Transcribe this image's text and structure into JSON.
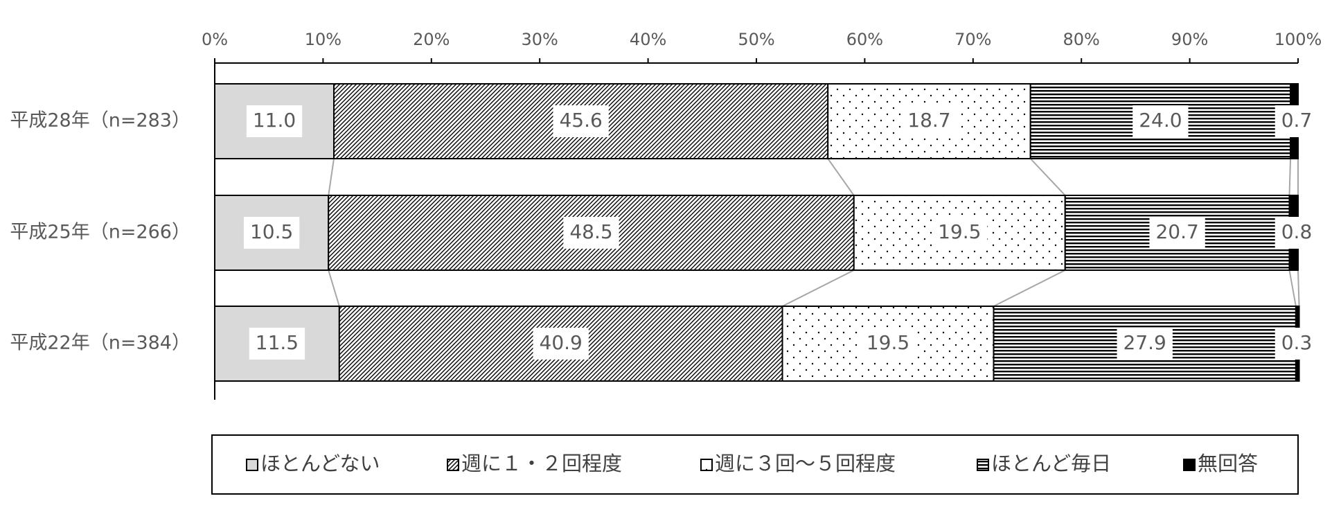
{
  "chart_data": {
    "type": "stacked-bar-horizontal",
    "categories": [
      "平成28年（n=283）",
      "平成25年（n=266）",
      "平成22年（n=384）"
    ],
    "series": [
      {
        "name": "ほとんどない",
        "values": [
          11.0,
          10.5,
          11.5
        ],
        "value_labels": [
          "11.0",
          "10.5",
          "11.5"
        ]
      },
      {
        "name": "週に１・２回程度",
        "values": [
          45.6,
          48.5,
          40.9
        ],
        "value_labels": [
          "45.6",
          "48.5",
          "40.9"
        ]
      },
      {
        "name": "週に３回～５回程度",
        "values": [
          18.7,
          19.5,
          19.5
        ],
        "value_labels": [
          "18.7",
          "19.5",
          "19.5"
        ]
      },
      {
        "name": "ほとんど毎日",
        "values": [
          24.0,
          20.7,
          27.9
        ],
        "value_labels": [
          "24.0",
          "20.7",
          "27.9"
        ]
      },
      {
        "name": "無回答",
        "values": [
          0.7,
          0.8,
          0.3
        ],
        "value_labels": [
          "0.7",
          "0.8",
          "0.3"
        ]
      }
    ],
    "xlim": [
      0,
      100
    ],
    "xticks": [
      {
        "value": 0,
        "label": "0%"
      },
      {
        "value": 10,
        "label": "10%"
      },
      {
        "value": 20,
        "label": "20%"
      },
      {
        "value": 30,
        "label": "30%"
      },
      {
        "value": 40,
        "label": "40%"
      },
      {
        "value": 50,
        "label": "50%"
      },
      {
        "value": 60,
        "label": "60%"
      },
      {
        "value": 70,
        "label": "70%"
      },
      {
        "value": 80,
        "label": "80%"
      },
      {
        "value": 90,
        "label": "90%"
      },
      {
        "value": 100,
        "label": "100%"
      }
    ],
    "legend": "bottom"
  }
}
